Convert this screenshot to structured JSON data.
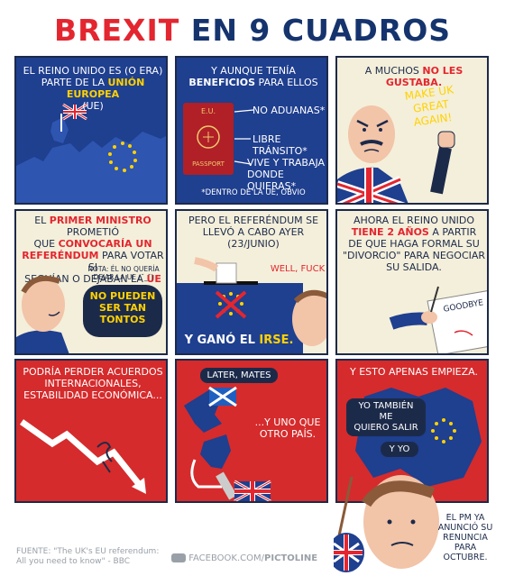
{
  "title": {
    "part1": "BREXIT",
    "part2": "EN 9 CUADROS"
  },
  "panels": {
    "p1": {
      "l1": "EL REINO UNIDO ES (O ERA)",
      "l2": "PARTE DE LA",
      "hl": "UNIÓN EUROPEA",
      "l3": "(UE)"
    },
    "p2": {
      "l1": "Y AUNQUE TENÍA",
      "hl": "BENEFICIOS",
      "l2": "PARA ELLOS",
      "passport_top": "E.U.",
      "passport_bottom": "PASSPORT",
      "b1": "NO ADUANAS*",
      "b2": "LIBRE TRÁNSITO*",
      "b3a": "VIVE Y TRABAJA",
      "b3b": "DONDE QUIERAS*",
      "note": "*DENTRO DE LA UE, OBVIO"
    },
    "p3": {
      "l1": "A MUCHOS",
      "hl": "NO LES GUSTABA.",
      "s1": "MAKE UK",
      "s2": "GREAT",
      "s3": "AGAIN!"
    },
    "p4": {
      "l1a": "EL",
      "hl1": "PRIMER MINISTRO",
      "l1b": "PROMETIÓ",
      "l2a": "QUE",
      "hl2": "CONVOCARÍA UN",
      "hl3": "REFERÉNDUM",
      "l3": "PARA VOTAR SI",
      "l4": "SEGUÍAN O DEJABAN LA",
      "hl4": "UE",
      "n1": "NOTA: ÉL NO QUERÍA",
      "n2": "DEJAR LA UE (˘_˘)",
      "bub1": "NO PUEDEN",
      "bub2": "SER TAN",
      "bub3": "TONTOS"
    },
    "p5": {
      "l1": "PERO EL REFERÉNDUM SE",
      "l2": "LLEVÓ A CABO AYER",
      "l3": "(23/JUNIO)",
      "speech": "WELL, FUCK",
      "res_a": "Y GANÓ EL",
      "res_b": "IRSE."
    },
    "p6": {
      "l1": "AHORA EL REINO UNIDO",
      "hl": "TIENE 2 AÑOS",
      "l2": "A PARTIR",
      "l3": "DE QUE HAGA FORMAL SU",
      "l4": "\"DIVORCIO\" PARA NEGOCIAR",
      "l5": "SU SALIDA.",
      "paper": "GOODBYE"
    },
    "p7": {
      "l1": "PODRÍA PERDER ACUERDOS",
      "l2": "INTERNACIONALES,",
      "l3": "ESTABILIDAD ECONÓMICA..."
    },
    "p8": {
      "pill": "LATER, MATES",
      "l1": "...Y UNO QUE",
      "l2": "OTRO PAÍS."
    },
    "p9": {
      "l1": "Y ESTO APENAS EMPIEZA.",
      "pill1a": "YO TAMBIÉN ME",
      "pill1b": "QUIERO SALIR",
      "pill2": "Y YO",
      "pm1": "EL PM YA",
      "pm2": "ANUNCIÓ SU",
      "pm3": "RENUNCIA PARA",
      "pm4": "OCTUBRE."
    }
  },
  "footer": {
    "src1": "FUENTE: \"The UK's EU referendum:",
    "src2": "All you need to know\" - BBC",
    "fb_a": "FACEBOOK.COM/",
    "fb_b": "PICTOLINE"
  }
}
